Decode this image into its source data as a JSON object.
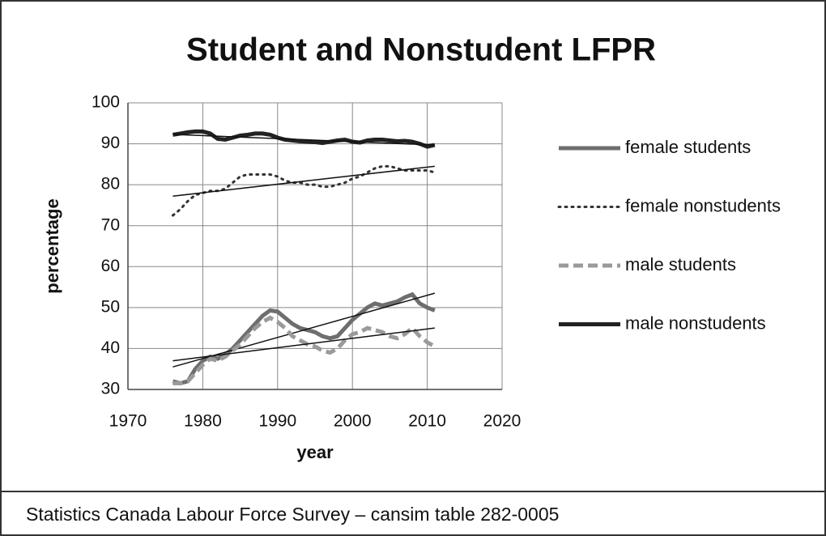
{
  "chart_data": {
    "type": "line",
    "title": "Student and Nonstudent LFPR",
    "xlabel": "year",
    "ylabel": "percentage",
    "x": [
      1976,
      1977,
      1978,
      1979,
      1980,
      1981,
      1982,
      1983,
      1984,
      1985,
      1986,
      1987,
      1988,
      1989,
      1990,
      1991,
      1992,
      1993,
      1994,
      1995,
      1996,
      1997,
      1998,
      1999,
      2000,
      2001,
      2002,
      2003,
      2004,
      2005,
      2006,
      2007,
      2008,
      2009,
      2010,
      2011
    ],
    "series": [
      {
        "name": "female students",
        "color": "#6e6e6e",
        "dash": "solid",
        "trendline": [
          35.5,
          53.5
        ],
        "values": [
          32,
          31.5,
          32,
          35,
          37,
          38,
          37.5,
          38.5,
          40,
          42,
          44,
          46,
          48,
          49.3,
          49,
          47.5,
          46,
          45,
          44.5,
          44,
          43,
          42.5,
          43,
          45,
          47,
          48.5,
          50,
          51,
          50.5,
          51,
          51.5,
          52.5,
          53.2,
          51,
          50,
          49.3
        ]
      },
      {
        "name": "female nonstudents",
        "color": "#333333",
        "dash": "dotted",
        "trendline": [
          77.2,
          84.5
        ],
        "values": [
          72.5,
          74,
          76,
          77.5,
          78,
          78.5,
          78.5,
          79,
          80.5,
          82,
          82.5,
          82.5,
          82.5,
          82.5,
          82,
          81,
          80.5,
          80.5,
          80,
          80,
          79.5,
          79.5,
          80,
          80.5,
          81.5,
          82,
          83,
          84,
          84.5,
          84.5,
          84,
          83.5,
          83.5,
          83.5,
          83.5,
          83
        ]
      },
      {
        "name": "male students",
        "color": "#9a9a9a",
        "dash": "dashed",
        "trendline": [
          37,
          45
        ],
        "values": [
          31.5,
          31.5,
          32,
          34,
          36,
          37.5,
          37,
          38,
          39.5,
          41,
          43,
          45,
          46.5,
          47.5,
          46.5,
          45,
          43,
          42,
          41,
          40.5,
          39.5,
          39,
          40,
          42,
          43.5,
          44,
          45,
          44.5,
          44,
          43,
          42.5,
          43.5,
          45,
          43,
          41.5,
          40.5
        ]
      },
      {
        "name": "male nonstudents",
        "color": "#222222",
        "dash": "solid",
        "trendline": [
          92.3,
          89.7
        ],
        "values": [
          92.2,
          92.5,
          92.8,
          93,
          93,
          92.5,
          91.2,
          91,
          91.5,
          92,
          92.2,
          92.5,
          92.5,
          92.2,
          91.5,
          91,
          90.8,
          90.6,
          90.5,
          90.4,
          90.2,
          90.5,
          90.8,
          91,
          90.5,
          90.3,
          90.8,
          91,
          91,
          90.8,
          90.6,
          90.7,
          90.5,
          90,
          89.3,
          89.7
        ]
      }
    ],
    "xlim": [
      1970,
      2020
    ],
    "xticks": [
      1970,
      1980,
      1990,
      2000,
      2010,
      2020
    ],
    "ylim": [
      30,
      100
    ],
    "yticks": [
      30,
      40,
      50,
      60,
      70,
      80,
      90,
      100
    ],
    "grid": true,
    "legend": "right",
    "footnote": "Statistics Canada Labour Force Survey – cansim table 282-0005"
  }
}
